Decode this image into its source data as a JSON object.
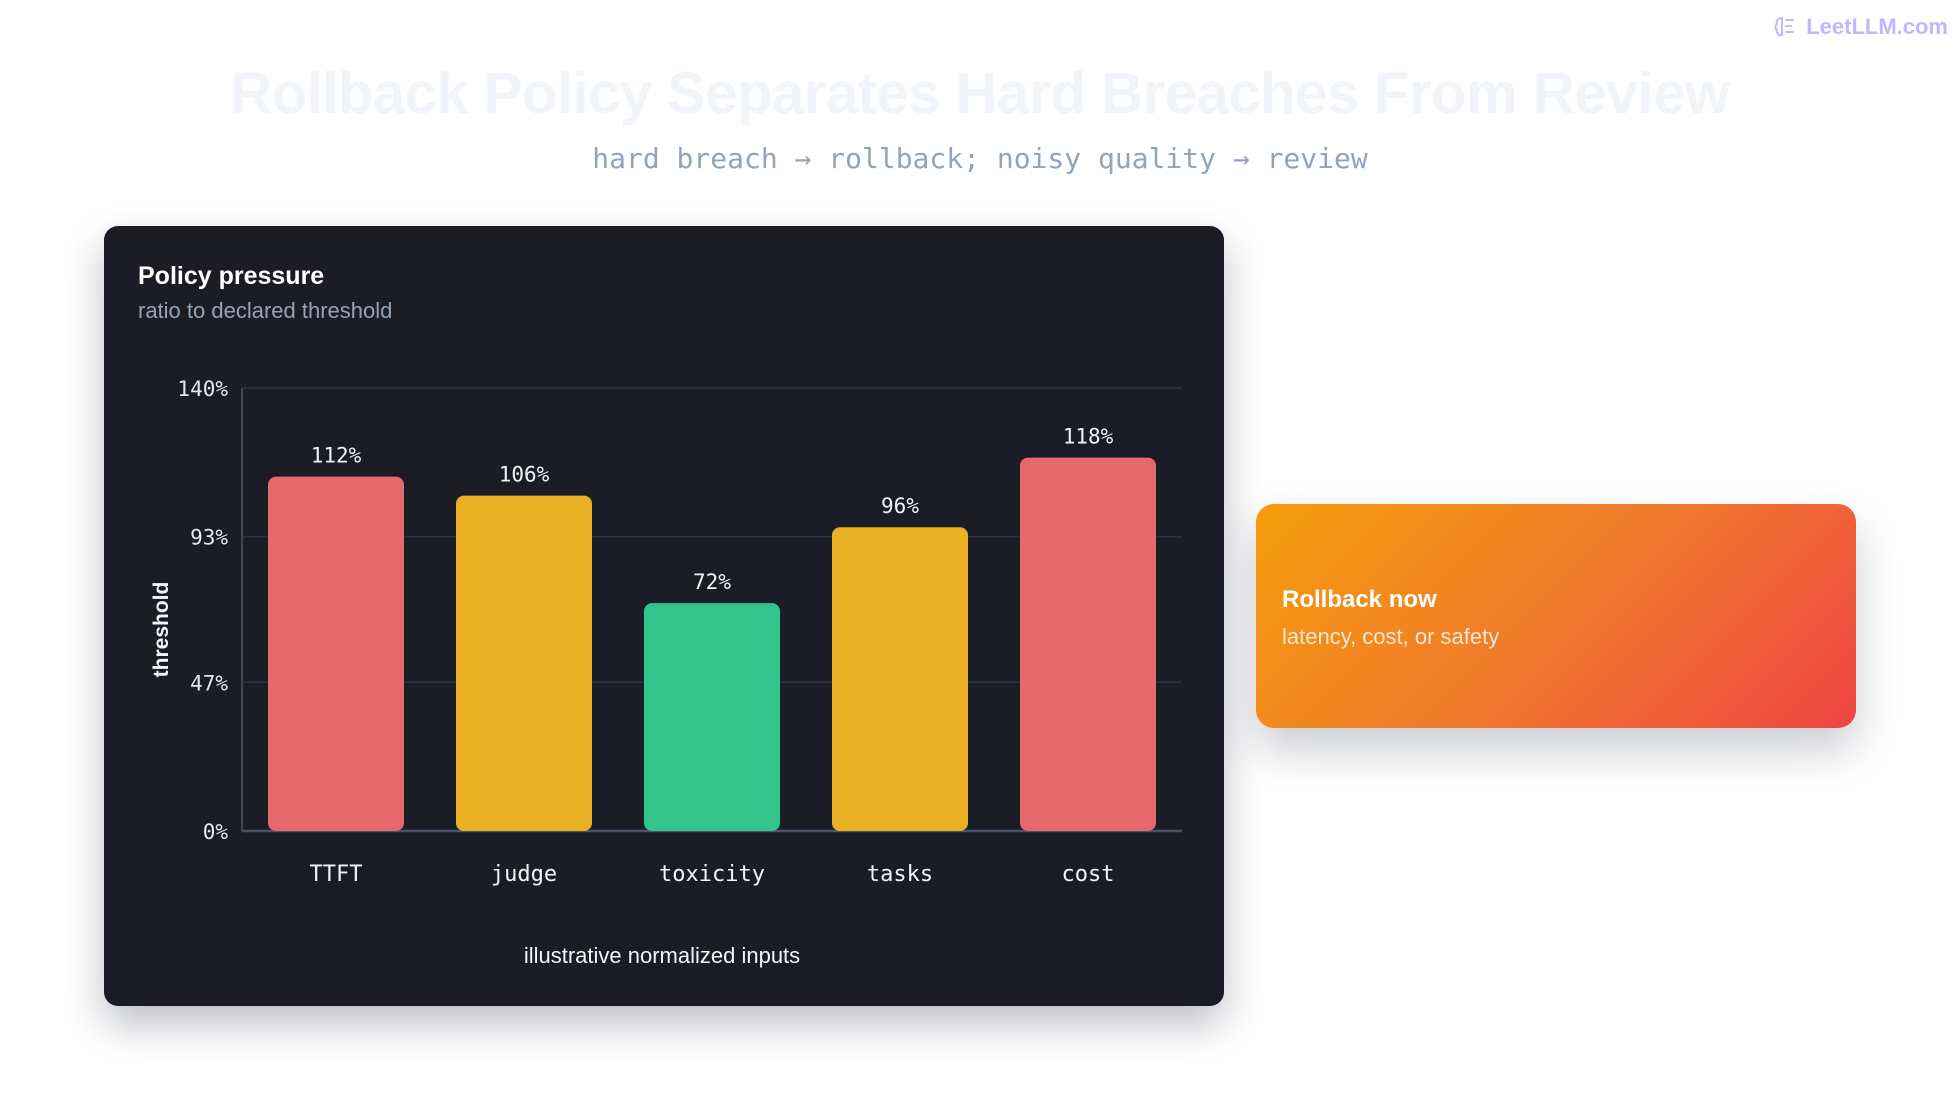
{
  "brand": {
    "name": "LeetLLM.com",
    "icon": "brain-icon"
  },
  "title": "Rollback Policy Separates Hard Breaches From Review",
  "subtitle": "hard breach → rollback; noisy quality → review",
  "chart_panel": {
    "title": "Policy pressure",
    "subtitle": "ratio to declared threshold"
  },
  "chart_data": {
    "type": "bar",
    "categories": [
      "TTFT",
      "judge",
      "toxicity",
      "tasks",
      "cost"
    ],
    "values": [
      112,
      106,
      72,
      96,
      118
    ],
    "value_labels": [
      "112%",
      "106%",
      "72%",
      "96%",
      "118%"
    ],
    "bar_colors": [
      "#e5696d",
      "#e8b124",
      "#33c48d",
      "#e8b124",
      "#e5696d"
    ],
    "ylim": [
      0,
      140
    ],
    "yticks": [
      0,
      47,
      93,
      140
    ],
    "ytick_labels": [
      "0%",
      "47%",
      "93%",
      "140%"
    ],
    "ylabel": "threshold",
    "xlabel": "illustrative normalized inputs",
    "grid": true
  },
  "callout": {
    "title": "Rollback now",
    "subtitle": "latency, cost, or safety"
  }
}
